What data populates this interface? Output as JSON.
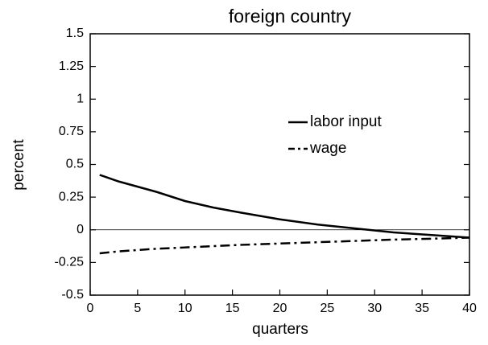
{
  "chart_data": {
    "type": "line",
    "title": "foreign country",
    "x_label": "quarters",
    "y_label": "percent",
    "x": [
      1,
      3,
      5,
      7,
      10,
      13,
      16,
      20,
      24,
      28,
      32,
      36,
      40
    ],
    "series": [
      {
        "name": "labor input",
        "color": "#000000",
        "dash": "solid",
        "values": [
          0.42,
          0.37,
          0.33,
          0.29,
          0.22,
          0.17,
          0.13,
          0.08,
          0.04,
          0.01,
          -0.02,
          -0.04,
          -0.06
        ]
      },
      {
        "name": "wage",
        "color": "#000000",
        "dash": "dashdot",
        "values": [
          -0.18,
          -0.165,
          -0.155,
          -0.145,
          -0.135,
          -0.125,
          -0.115,
          -0.105,
          -0.095,
          -0.085,
          -0.075,
          -0.068,
          -0.06
        ]
      }
    ],
    "xlim": [
      0,
      40
    ],
    "xticks": [
      0,
      5,
      10,
      15,
      20,
      25,
      30,
      35,
      40
    ],
    "ylim": [
      -0.5,
      1.5
    ],
    "yticks": [
      -0.5,
      -0.25,
      0,
      0.25,
      0.5,
      0.75,
      1,
      1.25,
      1.5
    ],
    "grid": false
  }
}
